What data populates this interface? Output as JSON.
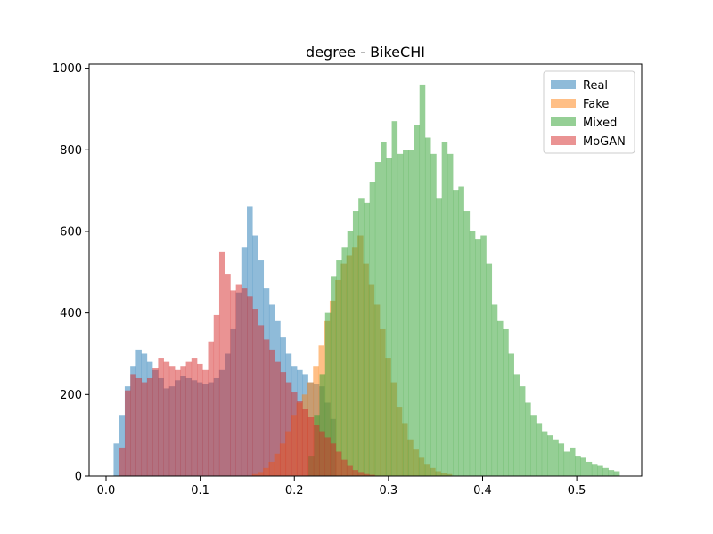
{
  "chart_data": {
    "type": "bar",
    "title": "degree - BikeCHI",
    "xlabel": "",
    "ylabel": "",
    "xlim": [
      -0.018,
      0.569
    ],
    "ylim": [
      0,
      1010
    ],
    "xticks": [
      0.0,
      0.1,
      0.2,
      0.3,
      0.4,
      0.5
    ],
    "xtick_labels": [
      "0.0",
      "0.1",
      "0.2",
      "0.3",
      "0.4",
      "0.5"
    ],
    "yticks": [
      0,
      200,
      400,
      600,
      800,
      1000
    ],
    "ytick_labels": [
      "0",
      "200",
      "400",
      "600",
      "800",
      "1000"
    ],
    "grid": false,
    "legend_position": "top-right",
    "series": [
      {
        "name": "Real",
        "color": "#1f77b4",
        "opacity": 0.5,
        "bin_start": 0.008,
        "bin_width": 0.0059,
        "values": [
          80,
          150,
          220,
          270,
          310,
          300,
          280,
          260,
          240,
          215,
          220,
          235,
          245,
          240,
          235,
          230,
          225,
          230,
          240,
          260,
          300,
          360,
          450,
          560,
          660,
          590,
          530,
          460,
          420,
          380,
          340,
          300,
          270,
          260,
          250,
          230,
          225,
          220,
          180,
          140
        ]
      },
      {
        "name": "Fake",
        "color": "#ff7f0e",
        "opacity": 0.5,
        "bin_start": 0.155,
        "bin_width": 0.0059,
        "values": [
          5,
          10,
          20,
          35,
          55,
          80,
          110,
          150,
          180,
          200,
          230,
          270,
          320,
          380,
          430,
          480,
          520,
          540,
          560,
          590,
          520,
          470,
          420,
          360,
          290,
          230,
          170,
          130,
          90,
          65,
          45,
          30,
          20,
          12,
          8,
          5
        ]
      },
      {
        "name": "Mixed",
        "color": "#2ca02c",
        "opacity": 0.5,
        "bin_start": 0.215,
        "bin_width": 0.0059,
        "values": [
          50,
          150,
          250,
          400,
          490,
          530,
          560,
          600,
          650,
          680,
          670,
          720,
          770,
          820,
          780,
          870,
          790,
          800,
          800,
          860,
          960,
          830,
          790,
          680,
          820,
          790,
          700,
          710,
          650,
          600,
          580,
          590,
          520,
          420,
          380,
          360,
          300,
          250,
          220,
          180,
          150,
          130,
          110,
          100,
          90,
          80,
          60,
          70,
          50,
          45,
          35,
          30,
          25,
          20,
          15,
          12
        ]
      },
      {
        "name": "MoGAN",
        "color": "#d62728",
        "opacity": 0.5,
        "bin_start": 0.014,
        "bin_width": 0.0059,
        "values": [
          70,
          210,
          250,
          240,
          230,
          240,
          265,
          290,
          280,
          270,
          260,
          270,
          280,
          290,
          275,
          260,
          330,
          395,
          550,
          495,
          455,
          470,
          460,
          440,
          410,
          370,
          335,
          310,
          280,
          255,
          230,
          205,
          185,
          165,
          145,
          125,
          110,
          95,
          80,
          60,
          40,
          25,
          15,
          10,
          5,
          3
        ]
      }
    ]
  }
}
